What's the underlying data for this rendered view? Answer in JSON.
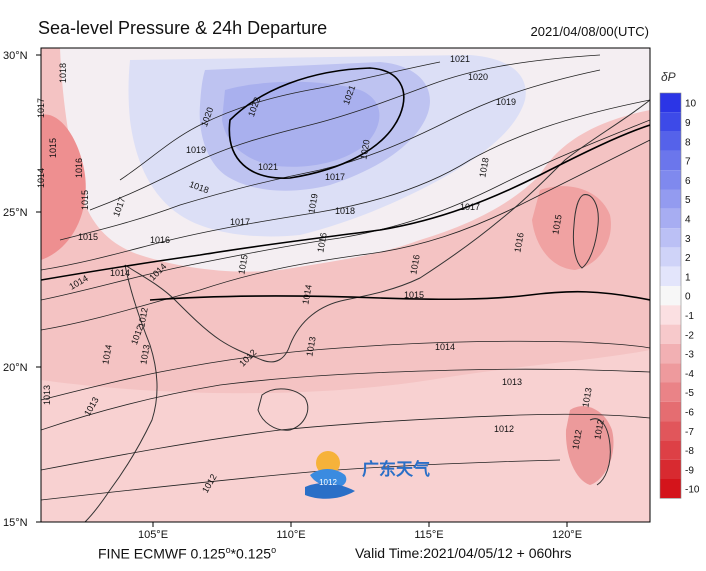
{
  "title": "Sea-level Pressure & 24h Departure",
  "datetime": "2021/04/08/00(UTC)",
  "footer": {
    "model": "FINE ECMWF 0.125",
    "res_sup1": "o",
    "res_mid": "*0.125",
    "res_sup2": "o",
    "valid": "Valid Time:2021/04/05/12 + 060hrs"
  },
  "axes": {
    "lat_labels": [
      "30°N",
      "25°N",
      "20°N",
      "15°N"
    ],
    "lon_labels": [
      "105°E",
      "110°E",
      "115°E",
      "120°E"
    ]
  },
  "colorbar": {
    "title": "δP",
    "labels": [
      "10",
      "9",
      "8",
      "7",
      "6",
      "5",
      "4",
      "3",
      "2",
      "1",
      "0",
      "-1",
      "-2",
      "-3",
      "-4",
      "-5",
      "-6",
      "-7",
      "-8",
      "-9",
      "-10"
    ],
    "colors": [
      "#2b35e6",
      "#3d4ae8",
      "#5562ea",
      "#6b76ec",
      "#7f89ee",
      "#939bf0",
      "#a7adf2",
      "#bbc0f5",
      "#cfd3f8",
      "#e3e5fb",
      "#f7f7f7",
      "#fbe0e2",
      "#f7c9cb",
      "#f2b0b3",
      "#ee9a9d",
      "#ea8387",
      "#e56d71",
      "#e1565b",
      "#dd4046",
      "#d82a30",
      "#d4141b"
    ]
  },
  "isobars": [
    "1022",
    "1021",
    "1021",
    "1021",
    "1020",
    "1020",
    "1020",
    "1019",
    "1019",
    "1019",
    "1018",
    "1018",
    "1018",
    "1018",
    "1017",
    "1017",
    "1017",
    "1017",
    "1017",
    "1016",
    "1016",
    "1016",
    "1016",
    "1016",
    "1015",
    "1015",
    "1015",
    "1015",
    "1015",
    "1015",
    "1014",
    "1014",
    "1014",
    "1014",
    "1014",
    "1014",
    "1014",
    "1013",
    "1013",
    "1013",
    "1013",
    "1013",
    "1013",
    "1012",
    "1012",
    "1012",
    "1012",
    "1012",
    "1012",
    "1012"
  ],
  "watermark": {
    "text": "广东天气",
    "sub": "1012"
  }
}
